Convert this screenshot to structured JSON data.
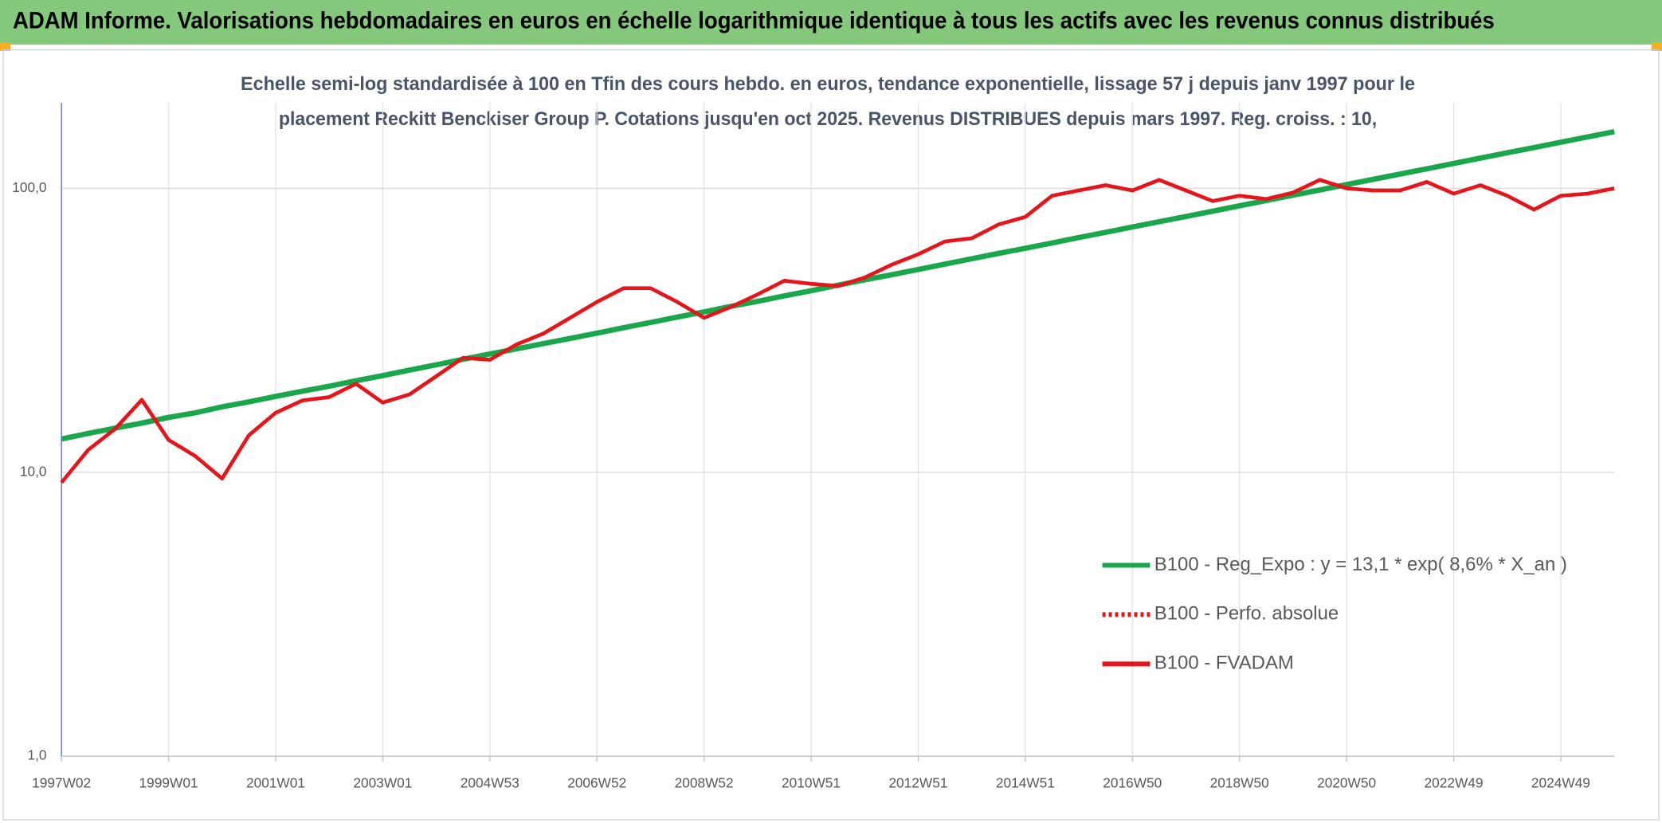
{
  "chart_data": {
    "type": "line",
    "title": "ADAM Informe. Valorisations hebdomadaires en euros en échelle logarithmique identique à tous les actifs avec les revenus connus distribués",
    "subtitle": [
      "Echelle semi-log standardisée à 100 en Tfin des cours hebdo. en euros, tendance exponentielle, lissage 57 j depuis janv 1997 pour le",
      "placement Reckitt Benckiser Group P. Cotations jusqu'en oct 2025. Revenus DISTRIBUES depuis mars 1997. Reg. croiss. : 10,"
    ],
    "log_scale": true,
    "grid": true,
    "legend_position": "right",
    "ylim": [
      1,
      200
    ],
    "yticks": [
      {
        "value": 1,
        "label": "1,0"
      },
      {
        "value": 10,
        "label": "10,0"
      },
      {
        "value": 100,
        "label": "100,0"
      }
    ],
    "categories": [
      "1997W02",
      null,
      null,
      null,
      "1999W01",
      null,
      null,
      null,
      "2001W01",
      null,
      null,
      null,
      "2003W01",
      null,
      null,
      null,
      "2004W53",
      null,
      null,
      null,
      "2006W52",
      null,
      null,
      null,
      "2008W52",
      null,
      null,
      null,
      "2010W51",
      null,
      null,
      null,
      "2012W51",
      null,
      null,
      null,
      "2014W51",
      null,
      null,
      null,
      "2016W50",
      null,
      null,
      null,
      "2018W50",
      null,
      null,
      null,
      "2020W50",
      null,
      null,
      null,
      "2022W49",
      null,
      null,
      null,
      "2024W49",
      null,
      null
    ],
    "series": [
      {
        "name": "B100 - Reg_Expo : y = 13,1 * exp( 8,6% *  X_an )",
        "color": "#1aa64a",
        "style": "solid",
        "values": [
          13.1,
          13.7,
          14.3,
          14.9,
          15.6,
          16.2,
          17.0,
          17.7,
          18.5,
          19.3,
          20.1,
          21.0,
          21.9,
          22.9,
          23.9,
          25.0,
          26.1,
          27.2,
          28.4,
          29.6,
          30.9,
          32.3,
          33.7,
          35.2,
          36.7,
          38.4,
          40.0,
          41.8,
          43.6,
          45.6,
          47.6,
          49.6,
          51.8,
          54.1,
          56.5,
          59.0,
          61.5,
          64.2,
          67.1,
          70.0,
          73.1,
          76.3,
          79.6,
          83.1,
          86.8,
          90.6,
          94.6,
          98.7,
          103.1,
          107.6,
          112.3,
          117.2,
          122.4,
          127.8,
          133.4,
          139.2,
          145.4,
          151.7,
          158.4
        ]
      },
      {
        "name": "B100 - Perfo. absolue",
        "color": "#e8141b",
        "style": "dotted",
        "values": [
          null,
          null,
          null,
          null,
          null,
          null,
          null,
          null,
          null,
          null,
          null,
          null,
          null,
          null,
          null,
          null,
          null,
          null,
          null,
          null,
          null,
          null,
          null,
          null,
          null,
          null,
          null,
          null,
          null,
          null,
          null,
          null,
          null,
          null,
          null,
          null,
          null,
          null,
          null,
          null,
          null,
          null,
          null,
          null,
          null,
          null,
          null,
          null,
          null,
          null,
          null,
          null,
          null,
          null,
          null,
          null,
          null,
          null,
          null
        ]
      },
      {
        "name": "B100 - FVADAM",
        "color": "#e8141b",
        "style": "solid",
        "values": [
          9.2,
          12.0,
          14.2,
          18.0,
          13.0,
          11.4,
          9.5,
          13.5,
          16.2,
          17.9,
          18.4,
          20.5,
          17.6,
          18.8,
          21.8,
          25.3,
          24.9,
          28.2,
          30.8,
          35.0,
          39.8,
          44.5,
          44.5,
          39.8,
          35.0,
          38.2,
          42.3,
          47.3,
          46.1,
          45.3,
          48.5,
          53.8,
          58.6,
          65.0,
          66.7,
          74.6,
          79.3,
          94.2,
          98.3,
          102.6,
          98.3,
          107.1,
          98.3,
          90.2,
          94.2,
          91.7,
          96.6,
          107.1,
          100,
          98.3,
          98.3,
          105.3,
          95.8,
          102.6,
          94.2,
          84.2,
          94.2,
          95.8,
          100
        ]
      }
    ]
  }
}
